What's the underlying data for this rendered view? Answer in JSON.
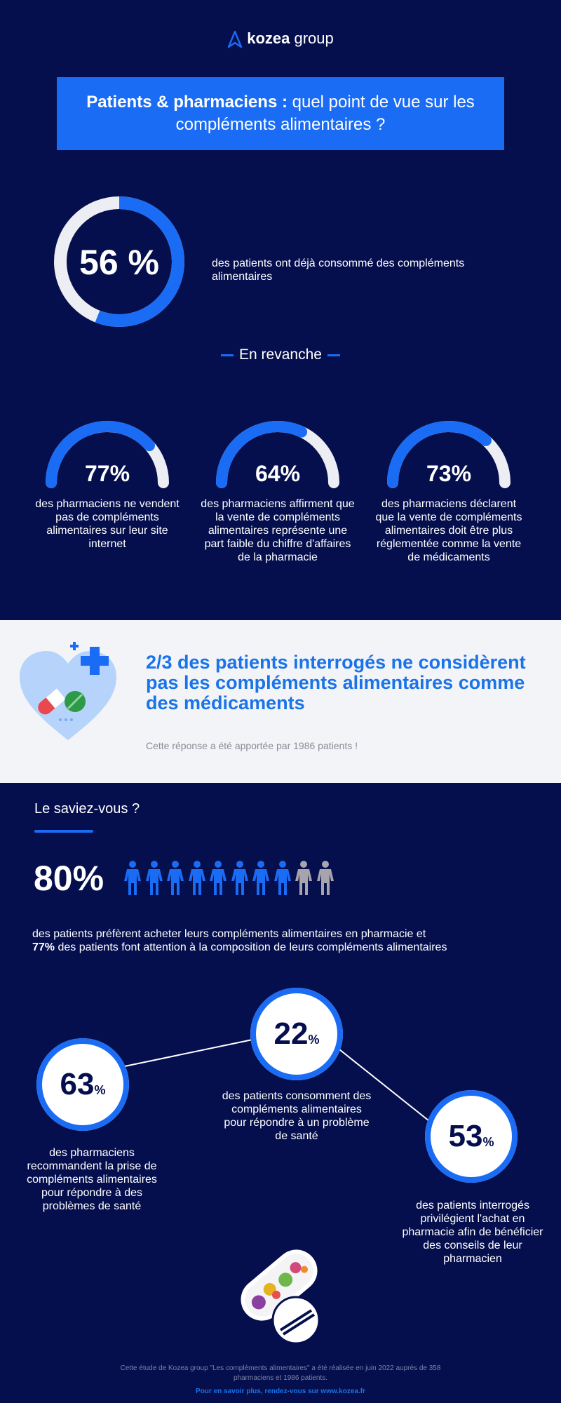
{
  "brand": {
    "name_bold": "kozea",
    "name_rest": " group"
  },
  "title": {
    "bold": "Patients & pharmaciens :",
    "rest": " quel point de vue sur les compléments alimentaires ?"
  },
  "intro": {
    "value": "56 %",
    "fraction": 0.56,
    "text": "des patients ont déjà consommé des compléments alimentaires"
  },
  "revanche_label": "En revanche",
  "gauges": [
    {
      "value": "77%",
      "fraction": 0.77,
      "text": "des pharmaciens ne vendent pas de compléments alimentaires sur leur site internet"
    },
    {
      "value": "64%",
      "fraction": 0.64,
      "text": "des pharmaciens affirment que la vente de compléments alimentaires représente une part faible du chiffre d'affaires de la pharmacie"
    },
    {
      "value": "73%",
      "fraction": 0.73,
      "text": "des pharmaciens déclarent que la vente de compléments alimentaires doit être plus réglementée comme la vente de médicaments"
    }
  ],
  "highlight": {
    "title": "2/3 des patients interrogés ne considèrent pas les compléments alimentaires comme des médicaments",
    "note": "Cette réponse a été apportée par 1986 patients !"
  },
  "saviez": {
    "heading": "Le saviez-vous ?",
    "value": "80%",
    "people_total": 10,
    "people_highlight": 8,
    "text_line1": "des patients préfèrent acheter leurs compléments alimentaires en pharmacie et",
    "text_bold": "77%",
    "text_line2": " des patients font attention à la composition de leurs compléments alimentaires"
  },
  "circles": [
    {
      "num": "63",
      "unit": "%",
      "text": "des pharmaciens recommandent la prise de compléments alimentaires pour répondre à des problèmes de santé"
    },
    {
      "num": "22",
      "unit": "%",
      "text": "des patients consomment des compléments alimentaires pour répondre à un problème de santé"
    },
    {
      "num": "53",
      "unit": "%",
      "text": "des patients interrogés privilégient l'achat en pharmacie afin de bénéficier des conseils de leur pharmacien"
    }
  ],
  "footer": {
    "note": "Cette étude de Kozea group \"Les compléments alimentaires\" a été réalisée en juin 2022 auprès de 358 pharmaciens et 1986 patients.",
    "link": "Pour en savoir plus, rendez-vous sur www.kozea.fr"
  },
  "colors": {
    "navy": "#050f4d",
    "blue": "#1a6cf5",
    "grey": "#eceef3",
    "light": "#f3f4f8",
    "person_grey": "#a8a4ad"
  }
}
